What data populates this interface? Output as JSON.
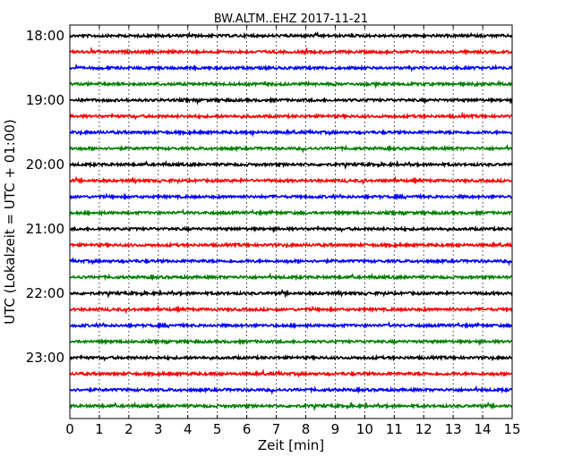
{
  "chart_data": {
    "type": "line",
    "title": "BW.ALTM..EHZ 2017-11-21",
    "xlabel": "Zeit  [min]",
    "ylabel": "UTC (Lokalzeit = UTC + 01:00)",
    "xlim": [
      0,
      15
    ],
    "x_ticks": [
      "0",
      "1",
      "2",
      "3",
      "4",
      "5",
      "6",
      "7",
      "8",
      "9",
      "10",
      "11",
      "12",
      "13",
      "14",
      "15"
    ],
    "y_start_minutes": 1080,
    "trace_interval_minutes": 15,
    "y_tick_labels": [
      "18:00",
      "19:00",
      "20:00",
      "21:00",
      "22:00",
      "23:00"
    ],
    "grid": {
      "x": true,
      "y": false
    },
    "trace_colors": [
      "#000000",
      "#ff0000",
      "#0000ff",
      "#008000"
    ],
    "series": [
      {
        "start": "18:00",
        "color": "#000000"
      },
      {
        "start": "18:15",
        "color": "#ff0000"
      },
      {
        "start": "18:30",
        "color": "#0000ff"
      },
      {
        "start": "18:45",
        "color": "#008000"
      },
      {
        "start": "19:00",
        "color": "#000000"
      },
      {
        "start": "19:15",
        "color": "#ff0000"
      },
      {
        "start": "19:30",
        "color": "#0000ff"
      },
      {
        "start": "19:45",
        "color": "#008000"
      },
      {
        "start": "20:00",
        "color": "#000000"
      },
      {
        "start": "20:15",
        "color": "#ff0000"
      },
      {
        "start": "20:30",
        "color": "#0000ff"
      },
      {
        "start": "20:45",
        "color": "#008000"
      },
      {
        "start": "21:00",
        "color": "#000000"
      },
      {
        "start": "21:15",
        "color": "#ff0000"
      },
      {
        "start": "21:30",
        "color": "#0000ff"
      },
      {
        "start": "21:45",
        "color": "#008000"
      },
      {
        "start": "22:00",
        "color": "#000000"
      },
      {
        "start": "22:15",
        "color": "#ff0000"
      },
      {
        "start": "22:30",
        "color": "#0000ff"
      },
      {
        "start": "22:45",
        "color": "#008000"
      },
      {
        "start": "23:00",
        "color": "#000000"
      },
      {
        "start": "23:15",
        "color": "#ff0000"
      },
      {
        "start": "23:30",
        "color": "#0000ff"
      },
      {
        "start": "23:45",
        "color": "#008000"
      }
    ]
  }
}
